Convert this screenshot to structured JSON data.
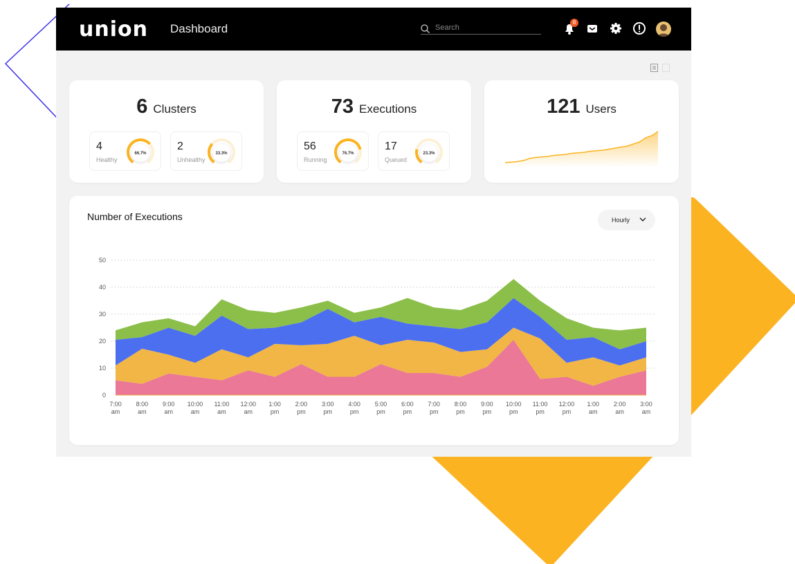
{
  "header": {
    "logo": "UNION",
    "title": "Dashboard",
    "search_placeholder": "Search",
    "notification_count": "8",
    "icons": [
      "bell-icon",
      "inbox-icon",
      "gear-icon",
      "alert-icon",
      "avatar"
    ]
  },
  "cards": {
    "clusters": {
      "value": "6",
      "label": "Clusters",
      "subs": [
        {
          "value": "4",
          "label": "Healthy",
          "percent": "66.7%",
          "fraction": 0.667
        },
        {
          "value": "2",
          "label": "Unhealthy",
          "percent": "33.3%",
          "fraction": 0.333
        }
      ]
    },
    "executions": {
      "value": "73",
      "label": "Executions",
      "subs": [
        {
          "value": "56",
          "label": "Running",
          "percent": "76.7%",
          "fraction": 0.767
        },
        {
          "value": "17",
          "label": "Queued",
          "percent": "23.3%",
          "fraction": 0.233
        }
      ]
    },
    "users": {
      "value": "121",
      "label": "Users",
      "trend": [
        2,
        2.5,
        3,
        4,
        6,
        7,
        7.5,
        8,
        9,
        9.5,
        10,
        11,
        11.5,
        12,
        13,
        13.5,
        14,
        15,
        16,
        17,
        18,
        20,
        22,
        26,
        28,
        32
      ]
    }
  },
  "chart": {
    "title": "Number of Executions",
    "range_select": "Hourly"
  },
  "colors": {
    "accent": "#fbb321",
    "pink": "#ea7896",
    "orange": "#f1b645",
    "blue": "#4c6ff0",
    "green": "#8bbf4a"
  },
  "chart_data": {
    "type": "area",
    "stacked": true,
    "title": "Number of Executions",
    "ylim": [
      0,
      50
    ],
    "yticks": [
      "0",
      "10",
      "20",
      "30",
      "40",
      "50"
    ],
    "grid": "horizontal dotted",
    "categories": [
      [
        "7:00",
        "am"
      ],
      [
        "8:00",
        "am"
      ],
      [
        "9:00",
        "am"
      ],
      [
        "10:00",
        "am"
      ],
      [
        "11:00",
        "am"
      ],
      [
        "12:00",
        "am"
      ],
      [
        "1:00",
        "pm"
      ],
      [
        "2:00",
        "pm"
      ],
      [
        "3:00",
        "pm"
      ],
      [
        "4:00",
        "pm"
      ],
      [
        "5:00",
        "pm"
      ],
      [
        "6:00",
        "pm"
      ],
      [
        "7:00",
        "pm"
      ],
      [
        "8:00",
        "pm"
      ],
      [
        "9:00",
        "pm"
      ],
      [
        "10:00",
        "pm"
      ],
      [
        "11:00",
        "pm"
      ],
      [
        "12:00",
        "pm"
      ],
      [
        "1:00",
        "am"
      ],
      [
        "2:00",
        "am"
      ],
      [
        "3:00",
        "am"
      ]
    ],
    "series": [
      {
        "color": "#ea7896",
        "values": [
          5.5,
          4.2,
          8,
          6.8,
          5.5,
          9.2,
          6.8,
          11.5,
          6.8,
          6.8,
          11.5,
          8.2,
          8.2,
          6.8,
          10.5,
          20.5,
          6,
          6.8,
          3.5,
          6.8,
          9.2
        ]
      },
      {
        "color": "#f1b645",
        "values": [
          5.5,
          13,
          7,
          5.2,
          11.5,
          4.8,
          12.2,
          7,
          12.2,
          15.2,
          7,
          12.3,
          11.3,
          9.2,
          6.5,
          4.5,
          15,
          5.2,
          10.5,
          4.2,
          4.8
        ]
      },
      {
        "color": "#4c6ff0",
        "values": [
          9.5,
          4.3,
          10,
          10,
          12.5,
          10.5,
          6,
          8.5,
          13,
          5,
          10.5,
          6,
          6,
          8.5,
          10,
          11,
          8,
          8.5,
          7.5,
          6,
          6
        ]
      },
      {
        "color": "#8bbf4a",
        "values": [
          3.5,
          5.5,
          3.5,
          3.5,
          6,
          7,
          5.5,
          5.5,
          3,
          3.5,
          3.5,
          9.5,
          7,
          7,
          8,
          7,
          6,
          8,
          3.5,
          7,
          5
        ]
      }
    ]
  }
}
